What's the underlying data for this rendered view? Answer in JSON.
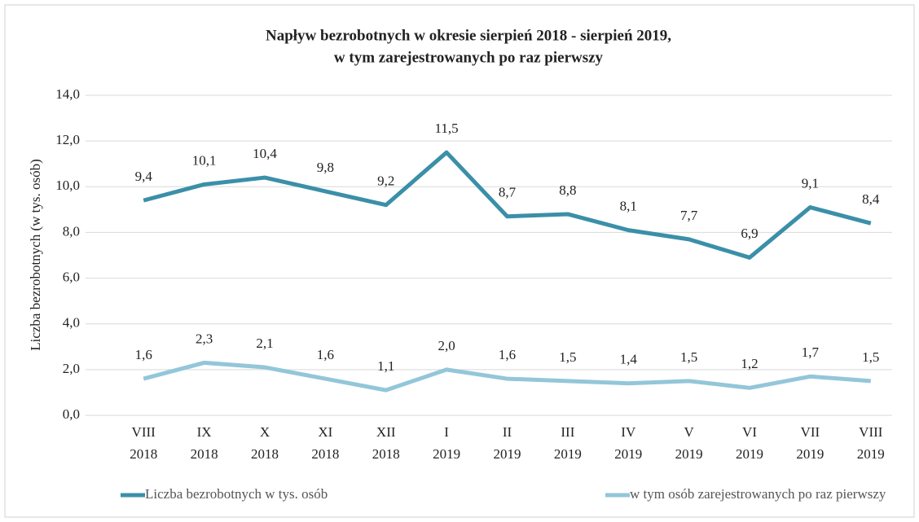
{
  "chart_data": {
    "type": "line",
    "title": [
      "Napływ  bezrobotnych w okresie sierpień 2018 - sierpień 2019,",
      "w tym zarejestrowanych po raz pierwszy"
    ],
    "y_label": "Liczba bezrobotnych (w tys. osób)",
    "categories": [
      [
        "VIII",
        "2018"
      ],
      [
        "IX",
        "2018"
      ],
      [
        "X",
        "2018"
      ],
      [
        "XI",
        "2018"
      ],
      [
        "XII",
        "2018"
      ],
      [
        "I",
        "2019"
      ],
      [
        "II",
        "2019"
      ],
      [
        "III",
        "2019"
      ],
      [
        "IV",
        "2019"
      ],
      [
        "V",
        "2019"
      ],
      [
        "VI",
        "2019"
      ],
      [
        "VII",
        "2019"
      ],
      [
        "VIII",
        "2019"
      ]
    ],
    "series": [
      {
        "name": "Liczba bezrobotnych w tys. osób",
        "color": "#3b8fa8",
        "values": [
          9.4,
          10.1,
          10.4,
          9.8,
          9.2,
          11.5,
          8.7,
          8.8,
          8.1,
          7.7,
          6.9,
          9.1,
          8.4
        ],
        "value_labels": [
          "9,4",
          "10,1",
          "10,4",
          "9,8",
          "9,2",
          "11,5",
          "8,7",
          "8,8",
          "8,1",
          "7,7",
          "6,9",
          "9,1",
          "8,4"
        ]
      },
      {
        "name": "w tym osób zarejestrowanych po raz pierwszy",
        "color": "#93c6d9",
        "values": [
          1.6,
          2.3,
          2.1,
          1.6,
          1.1,
          2.0,
          1.6,
          1.5,
          1.4,
          1.5,
          1.2,
          1.7,
          1.5
        ],
        "value_labels": [
          "1,6",
          "2,3",
          "2,1",
          "1,6",
          "1,1",
          "2,0",
          "1,6",
          "1,5",
          "1,4",
          "1,5",
          "1,2",
          "1,7",
          "1,5"
        ]
      }
    ],
    "ylim": [
      0,
      14
    ],
    "yticks": [
      {
        "value": 0,
        "label": "0,0"
      },
      {
        "value": 2,
        "label": "2,0"
      },
      {
        "value": 4,
        "label": "4,0"
      },
      {
        "value": 6,
        "label": "6,0"
      },
      {
        "value": 8,
        "label": "8,0"
      },
      {
        "value": 10,
        "label": "10,0"
      },
      {
        "value": 12,
        "label": "12,0"
      },
      {
        "value": 14,
        "label": "14,0"
      }
    ],
    "grid": true,
    "legend": "bottom"
  }
}
